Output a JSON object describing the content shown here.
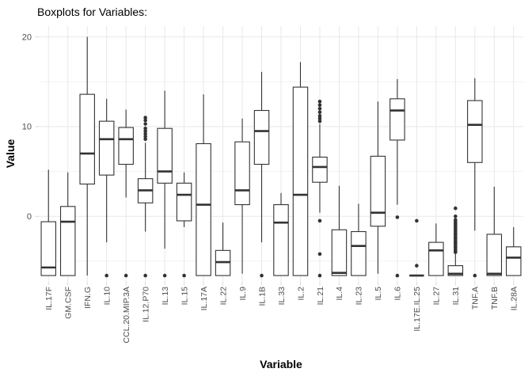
{
  "colors": {
    "background": "#FFFFFF",
    "box_stroke": "#333333",
    "box_fill": "#FFFFFF",
    "grid_major": "#E8E8E8",
    "grid_minor": "#F2F2F2",
    "tick": "#D9D9D9",
    "axis_text": "#4D4D4D",
    "title_text": "#000000"
  },
  "chart_data": {
    "type": "boxplot",
    "title": "Boxplots for Variables:",
    "xlabel": "Variable",
    "ylabel": "Value",
    "ylim": [
      -7.3,
      21.2
    ],
    "yticks": [
      0,
      10,
      20
    ],
    "yminor": [
      -5,
      5,
      15
    ],
    "grid": true,
    "legend": false,
    "categories": [
      "IL.17F",
      "GM.CSF",
      "IFN.G",
      "IL.10",
      "CCL.20.MIP.3A",
      "IL.12.P70",
      "IL.13",
      "IL.15",
      "IL.17A",
      "IL.22",
      "IL.9",
      "IL.1B",
      "IL.33",
      "IL.2",
      "IL.21",
      "IL.4",
      "IL.23",
      "IL.5",
      "IL.6",
      "IL.17E.IL.25",
      "IL.27",
      "IL.31",
      "TNF.A",
      "TNF.B",
      "IL.28A"
    ],
    "boxes": [
      {
        "name": "IL.17F",
        "lo": -6.6,
        "q1": -6.6,
        "med": -5.7,
        "q3": -0.6,
        "hi": 5.2,
        "outliers": []
      },
      {
        "name": "GM.CSF",
        "lo": -6.6,
        "q1": -6.6,
        "med": -0.6,
        "q3": 1.1,
        "hi": 4.9,
        "outliers": []
      },
      {
        "name": "IFN.G",
        "lo": -6.6,
        "q1": 3.6,
        "med": 7.0,
        "q3": 13.6,
        "hi": 20.0,
        "outliers": []
      },
      {
        "name": "IL.10",
        "lo": -2.9,
        "q1": 4.6,
        "med": 8.6,
        "q3": 10.6,
        "hi": 13.1,
        "outliers": [
          -6.6
        ]
      },
      {
        "name": "CCL.20.MIP.3A",
        "lo": 2.1,
        "q1": 5.8,
        "med": 8.6,
        "q3": 9.9,
        "hi": 11.9,
        "outliers": [
          -6.6
        ]
      },
      {
        "name": "IL.12.P70",
        "lo": -1.7,
        "q1": 1.5,
        "med": 2.9,
        "q3": 4.2,
        "hi": 8.2,
        "outliers": [
          8.6,
          8.9,
          9.2,
          9.5,
          9.8,
          10.3,
          10.7,
          11.0,
          -6.6
        ]
      },
      {
        "name": "IL.13",
        "lo": -3.6,
        "q1": 3.7,
        "med": 5.0,
        "q3": 9.8,
        "hi": 14.0,
        "outliers": [
          -6.6
        ]
      },
      {
        "name": "IL.15",
        "lo": -1.2,
        "q1": -0.5,
        "med": 2.4,
        "q3": 3.7,
        "hi": 4.9,
        "outliers": [
          -6.6
        ]
      },
      {
        "name": "IL.17A",
        "lo": -6.6,
        "q1": -6.6,
        "med": 1.3,
        "q3": 8.1,
        "hi": 13.6,
        "outliers": []
      },
      {
        "name": "IL.22",
        "lo": -6.6,
        "q1": -6.6,
        "med": -5.1,
        "q3": -3.8,
        "hi": -0.7,
        "outliers": []
      },
      {
        "name": "IL.9",
        "lo": -6.4,
        "q1": 1.3,
        "med": 2.9,
        "q3": 8.3,
        "hi": 10.9,
        "outliers": []
      },
      {
        "name": "IL.1B",
        "lo": -2.9,
        "q1": 5.8,
        "med": 9.5,
        "q3": 11.8,
        "hi": 16.1,
        "outliers": [
          -6.6
        ]
      },
      {
        "name": "IL.33",
        "lo": -6.6,
        "q1": -6.6,
        "med": -0.7,
        "q3": 1.3,
        "hi": 2.6,
        "outliers": []
      },
      {
        "name": "IL.2",
        "lo": -6.6,
        "q1": -6.6,
        "med": 2.4,
        "q3": 14.4,
        "hi": 17.2,
        "outliers": []
      },
      {
        "name": "IL.21",
        "lo": 0.4,
        "q1": 3.8,
        "med": 5.5,
        "q3": 6.6,
        "hi": 10.3,
        "outliers": [
          10.6,
          10.9,
          11.2,
          11.6,
          12.0,
          12.4,
          12.8,
          -0.5,
          -4.2,
          -6.6
        ]
      },
      {
        "name": "IL.4",
        "lo": -6.6,
        "q1": -6.6,
        "med": -6.3,
        "q3": -1.5,
        "hi": 3.4,
        "outliers": []
      },
      {
        "name": "IL.23",
        "lo": -6.6,
        "q1": -6.6,
        "med": -3.3,
        "q3": -1.7,
        "hi": 1.4,
        "outliers": []
      },
      {
        "name": "IL.5",
        "lo": -6.4,
        "q1": -1.1,
        "med": 0.4,
        "q3": 6.7,
        "hi": 12.8,
        "outliers": []
      },
      {
        "name": "IL.6",
        "lo": 1.3,
        "q1": 8.5,
        "med": 11.8,
        "q3": 13.1,
        "hi": 15.3,
        "outliers": [
          -0.1,
          -6.6
        ]
      },
      {
        "name": "IL.17E.IL.25",
        "lo": -6.6,
        "q1": -6.6,
        "med": -6.6,
        "q3": -6.6,
        "hi": -6.6,
        "outliers": [
          -0.5,
          -5.5
        ]
      },
      {
        "name": "IL.27",
        "lo": -6.6,
        "q1": -6.6,
        "med": -3.8,
        "q3": -2.9,
        "hi": -0.8,
        "outliers": []
      },
      {
        "name": "IL.31",
        "lo": -6.6,
        "q1": -6.6,
        "med": -6.4,
        "q3": -5.5,
        "hi": -4.2,
        "outliers": [
          0.9,
          0.0,
          -0.4,
          -0.6,
          -0.8,
          -1.0,
          -1.2,
          -1.4,
          -1.5,
          -1.7,
          -1.9,
          -2.0,
          -2.2,
          -2.4,
          -2.5,
          -2.7,
          -2.9,
          -3.0,
          -3.2,
          -3.4,
          -3.5,
          -3.7,
          -3.9,
          -4.0
        ]
      },
      {
        "name": "TNF.A",
        "lo": -1.6,
        "q1": 6.0,
        "med": 10.2,
        "q3": 12.9,
        "hi": 15.4,
        "outliers": [
          -6.6
        ]
      },
      {
        "name": "TNF.B",
        "lo": -6.6,
        "q1": -6.6,
        "med": -6.4,
        "q3": -2.0,
        "hi": 3.3,
        "outliers": []
      },
      {
        "name": "IL.28A",
        "lo": -6.6,
        "q1": -6.6,
        "med": -4.6,
        "q3": -3.4,
        "hi": -1.2,
        "outliers": []
      }
    ]
  }
}
